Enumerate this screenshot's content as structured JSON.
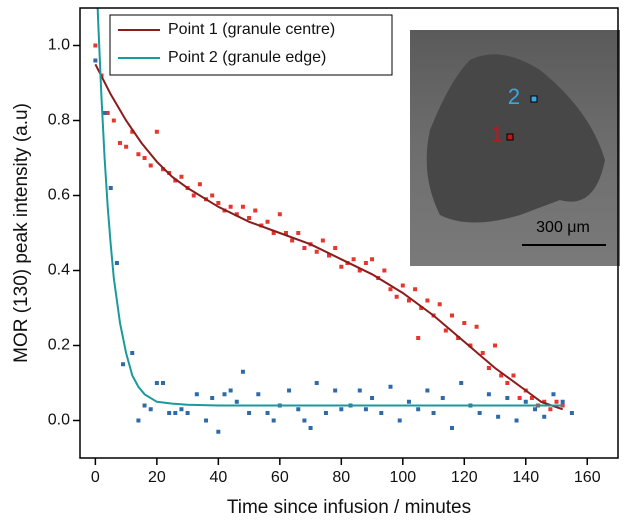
{
  "chart_data": {
    "type": "scatter",
    "xlabel": "Time since infusion / minutes",
    "ylabel": "MOR (130) peak intensity (a.u)",
    "xlim": [
      -5,
      170
    ],
    "ylim": [
      -0.1,
      1.1
    ],
    "xticks": [
      0,
      20,
      40,
      60,
      80,
      100,
      120,
      140,
      160
    ],
    "yticks": [
      {
        "value": 0,
        "label": "0.0"
      },
      0.2,
      0.4,
      0.6,
      0.8,
      {
        "value": 1,
        "label": "1.0"
      }
    ],
    "legend": "upper left",
    "series": [
      {
        "type": "markers",
        "color": "#e8352d",
        "x": [
          0,
          2,
          4,
          6,
          8,
          10,
          12,
          14,
          16,
          18,
          20,
          22,
          24,
          26,
          28,
          30,
          32,
          34,
          36,
          38,
          40,
          42,
          44,
          46,
          48,
          50,
          52,
          54,
          56,
          58,
          60,
          62,
          64,
          66,
          68,
          70,
          72,
          74,
          76,
          78,
          80,
          82,
          84,
          86,
          88,
          90,
          92,
          94,
          96,
          98,
          100,
          102,
          104,
          105,
          106,
          108,
          110,
          112,
          114,
          116,
          118,
          120,
          122,
          124,
          126,
          128,
          130,
          132,
          134,
          136,
          138,
          140,
          142,
          144,
          146,
          148,
          150,
          152
        ],
        "values": [
          1.0,
          0.92,
          0.82,
          0.8,
          0.74,
          0.73,
          0.77,
          0.71,
          0.7,
          0.68,
          0.77,
          0.67,
          0.66,
          0.64,
          0.65,
          0.62,
          0.6,
          0.63,
          0.59,
          0.6,
          0.58,
          0.56,
          0.57,
          0.55,
          0.57,
          0.54,
          0.56,
          0.52,
          0.53,
          0.5,
          0.55,
          0.5,
          0.48,
          0.5,
          0.46,
          0.47,
          0.45,
          0.48,
          0.44,
          0.46,
          0.41,
          0.42,
          0.43,
          0.4,
          0.42,
          0.43,
          0.38,
          0.4,
          0.35,
          0.33,
          0.36,
          0.32,
          0.35,
          0.22,
          0.3,
          0.32,
          0.28,
          0.31,
          0.24,
          0.28,
          0.22,
          0.26,
          0.2,
          0.25,
          0.18,
          0.14,
          0.2,
          0.12,
          0.1,
          0.12,
          0.06,
          0.08,
          0.06,
          0.04,
          0.05,
          0.03,
          0.05,
          0.04
        ]
      },
      {
        "type": "markers",
        "color": "#2f6aa8",
        "x": [
          0,
          3,
          5,
          7,
          9,
          12,
          14,
          16,
          18,
          20,
          22,
          24,
          26,
          28,
          30,
          33,
          36,
          38,
          40,
          42,
          44,
          46,
          48,
          50,
          53,
          56,
          58,
          60,
          63,
          66,
          68,
          70,
          72,
          75,
          78,
          80,
          83,
          86,
          88,
          90,
          93,
          96,
          99,
          102,
          105,
          108,
          110,
          113,
          116,
          119,
          122,
          125,
          128,
          131,
          134,
          137,
          140,
          143,
          146,
          149,
          152,
          155
        ],
        "values": [
          0.96,
          0.82,
          0.62,
          0.42,
          0.15,
          0.18,
          0.0,
          0.04,
          0.03,
          0.1,
          0.1,
          0.02,
          0.02,
          0.03,
          0.02,
          0.07,
          0.0,
          0.06,
          -0.03,
          0.07,
          0.08,
          0.05,
          0.13,
          0.02,
          0.07,
          0.02,
          0.0,
          0.04,
          0.08,
          0.03,
          0.0,
          -0.02,
          0.1,
          0.02,
          0.08,
          0.03,
          0.04,
          0.08,
          0.03,
          0.06,
          0.02,
          0.09,
          0.0,
          0.05,
          0.03,
          0.08,
          0.02,
          0.06,
          -0.02,
          0.1,
          0.04,
          0.02,
          0.07,
          0.01,
          0.06,
          0.0,
          0.05,
          0.03,
          0.01,
          0.07,
          0.05,
          0.02
        ]
      },
      {
        "type": "line",
        "name": "Point 1 (granule centre)",
        "color": "#8b1c1c",
        "x": [
          0,
          5,
          10,
          15,
          20,
          25,
          30,
          40,
          50,
          60,
          70,
          80,
          90,
          100,
          110,
          120,
          130,
          140,
          145,
          152
        ],
        "values": [
          0.95,
          0.87,
          0.8,
          0.74,
          0.69,
          0.65,
          0.62,
          0.57,
          0.53,
          0.5,
          0.47,
          0.43,
          0.39,
          0.34,
          0.28,
          0.21,
          0.14,
          0.08,
          0.05,
          0.03
        ]
      },
      {
        "type": "line",
        "name": "Point 2 (granule edge)",
        "color": "#1a9a9a",
        "x": [
          0.5,
          1,
          2,
          3,
          4,
          5,
          6,
          8,
          10,
          12,
          14,
          16,
          20,
          25,
          30,
          40,
          60,
          100,
          152
        ],
        "values": [
          1.15,
          1.05,
          0.86,
          0.7,
          0.57,
          0.47,
          0.38,
          0.26,
          0.18,
          0.12,
          0.09,
          0.07,
          0.05,
          0.045,
          0.042,
          0.04,
          0.04,
          0.04,
          0.04
        ]
      }
    ],
    "inset": {
      "marker_1": "1",
      "marker_2": "2",
      "scale_bar": "300 μm"
    }
  }
}
